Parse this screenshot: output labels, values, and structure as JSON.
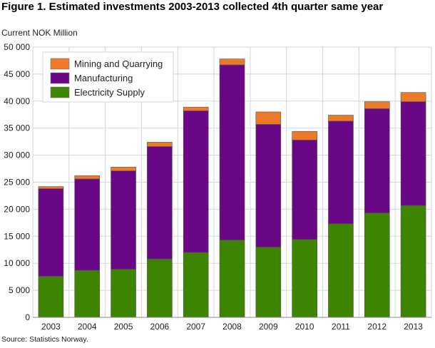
{
  "chart_data": {
    "type": "bar",
    "stacked": true,
    "title": "Figure 1. Estimated investments 2003-2013 collected 4th quarter same year",
    "ylabel": "Current NOK Million",
    "xlabel": "",
    "source": "Source: Statistics Norway.",
    "categories": [
      "2003",
      "2004",
      "2005",
      "2006",
      "2007",
      "2008",
      "2009",
      "2010",
      "2011",
      "2012",
      "2013"
    ],
    "ylim": [
      0,
      50000
    ],
    "yticks": [
      0,
      5000,
      10000,
      15000,
      20000,
      25000,
      30000,
      35000,
      40000,
      45000,
      50000
    ],
    "ytick_labels": [
      "0",
      "5 000",
      "10 000",
      "15 000",
      "20 000",
      "25 000",
      "30 000",
      "35 000",
      "40 000",
      "45 000",
      "50 000"
    ],
    "grid": true,
    "legend_placement": "top-left",
    "series": [
      {
        "name": "Electricity Supply",
        "color": "#3d8500",
        "values": [
          7600,
          8700,
          8900,
          10800,
          12000,
          14300,
          13000,
          14400,
          17300,
          19300,
          20700
        ]
      },
      {
        "name": "Manufacturing",
        "color": "#6a0787",
        "values": [
          16200,
          16900,
          18200,
          20800,
          26200,
          32400,
          22700,
          18400,
          19000,
          19300,
          19200
        ]
      },
      {
        "name": "Mining and Quarrying",
        "color": "#ec7a28",
        "values": [
          400,
          600,
          700,
          800,
          700,
          1100,
          2300,
          1600,
          1100,
          1300,
          1700
        ]
      }
    ]
  }
}
